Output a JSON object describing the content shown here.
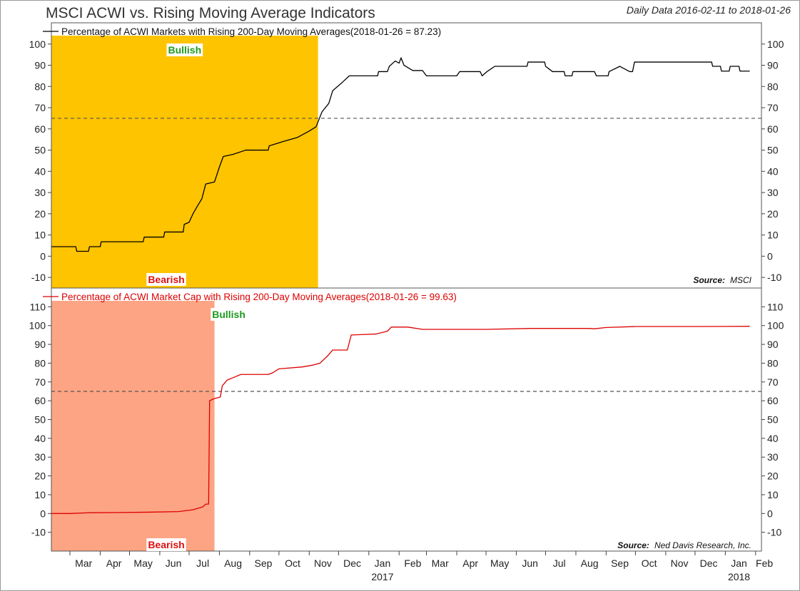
{
  "chart_data": [
    {
      "type": "line",
      "title": "MSCI ACWI vs. Rising Moving Average Indicators",
      "subtitle": "Daily Data 2016-02-11 to 2018-01-26",
      "series": [
        {
          "name": "Percentage of ACWI Markets with Rising 200-Day Moving Averages(2018-01-26 = 87.23)",
          "color": "#000000",
          "points": [
            [
              "2016-02-11",
              4.5
            ],
            [
              "2016-03-07",
              4.5
            ],
            [
              "2016-03-08",
              2.3
            ],
            [
              "2016-03-20",
              2.3
            ],
            [
              "2016-03-21",
              4.5
            ],
            [
              "2016-04-01",
              4.5
            ],
            [
              "2016-04-02",
              6.8
            ],
            [
              "2016-05-15",
              6.8
            ],
            [
              "2016-05-16",
              9
            ],
            [
              "2016-06-05",
              9
            ],
            [
              "2016-06-06",
              11.4
            ],
            [
              "2016-06-25",
              11.4
            ],
            [
              "2016-06-26",
              15
            ],
            [
              "2016-07-01",
              16
            ],
            [
              "2016-07-05",
              20
            ],
            [
              "2016-07-10",
              24
            ],
            [
              "2016-07-14",
              27
            ],
            [
              "2016-07-18",
              34
            ],
            [
              "2016-07-27",
              35
            ],
            [
              "2016-08-01",
              42
            ],
            [
              "2016-08-05",
              47
            ],
            [
              "2016-08-15",
              48
            ],
            [
              "2016-08-28",
              50
            ],
            [
              "2016-09-20",
              50
            ],
            [
              "2016-09-21",
              52
            ],
            [
              "2016-10-05",
              54
            ],
            [
              "2016-10-20",
              56
            ],
            [
              "2016-11-01",
              59
            ],
            [
              "2016-11-08",
              61
            ],
            [
              "2016-11-14",
              68
            ],
            [
              "2016-11-21",
              72
            ],
            [
              "2016-11-25",
              78
            ],
            [
              "2016-12-05",
              82
            ],
            [
              "2016-12-12",
              85
            ],
            [
              "2017-01-10",
              85
            ],
            [
              "2017-01-11",
              87
            ],
            [
              "2017-01-20",
              87
            ],
            [
              "2017-01-22",
              89.5
            ],
            [
              "2017-01-28",
              92
            ],
            [
              "2017-02-01",
              91
            ],
            [
              "2017-02-03",
              93.5
            ],
            [
              "2017-02-06",
              90
            ],
            [
              "2017-02-15",
              87.5
            ],
            [
              "2017-02-25",
              87.5
            ],
            [
              "2017-03-01",
              85
            ],
            [
              "2017-04-01",
              85
            ],
            [
              "2017-04-04",
              87
            ],
            [
              "2017-04-25",
              87
            ],
            [
              "2017-04-27",
              85
            ],
            [
              "2017-05-02",
              87
            ],
            [
              "2017-05-10",
              89.5
            ],
            [
              "2017-06-12",
              89.5
            ],
            [
              "2017-06-13",
              91.5
            ],
            [
              "2017-06-30",
              91.5
            ],
            [
              "2017-07-01",
              89.5
            ],
            [
              "2017-07-08",
              87
            ],
            [
              "2017-07-20",
              87
            ],
            [
              "2017-07-21",
              85
            ],
            [
              "2017-07-28",
              85
            ],
            [
              "2017-07-29",
              87
            ],
            [
              "2017-08-20",
              87
            ],
            [
              "2017-08-22",
              85
            ],
            [
              "2017-09-03",
              85
            ],
            [
              "2017-09-04",
              87
            ],
            [
              "2017-09-15",
              89.5
            ],
            [
              "2017-09-25",
              87
            ],
            [
              "2017-09-28",
              87
            ],
            [
              "2017-09-30",
              91.5
            ],
            [
              "2017-12-18",
              91.5
            ],
            [
              "2017-12-19",
              89.5
            ],
            [
              "2017-12-27",
              89.5
            ],
            [
              "2017-12-28",
              87.23
            ],
            [
              "2018-01-05",
              87.23
            ],
            [
              "2018-01-06",
              89.5
            ],
            [
              "2018-01-15",
              89.5
            ],
            [
              "2018-01-16",
              87.23
            ],
            [
              "2018-01-26",
              87.23
            ]
          ]
        },
        {
          "name": "Percentage of ACWI Market Cap with Rising 200-Day Moving Averages(2018-01-26 = 99.63)",
          "color": "#dd0000",
          "points": [
            [
              "2016-02-11",
              0
            ],
            [
              "2016-03-01",
              0
            ],
            [
              "2016-03-20",
              0.4
            ],
            [
              "2016-04-15",
              0.5
            ],
            [
              "2016-05-20",
              0.7
            ],
            [
              "2016-06-20",
              1
            ],
            [
              "2016-07-05",
              2
            ],
            [
              "2016-07-15",
              3.5
            ],
            [
              "2016-07-18",
              5
            ],
            [
              "2016-07-21",
              5
            ],
            [
              "2016-07-22",
              60
            ],
            [
              "2016-07-26",
              61
            ],
            [
              "2016-08-02",
              62
            ],
            [
              "2016-08-04",
              68
            ],
            [
              "2016-08-09",
              71
            ],
            [
              "2016-08-16",
              72.5
            ],
            [
              "2016-08-23",
              74
            ],
            [
              "2016-09-20",
              74
            ],
            [
              "2016-09-25",
              75
            ],
            [
              "2016-10-01",
              77
            ],
            [
              "2016-10-25",
              78
            ],
            [
              "2016-11-05",
              79
            ],
            [
              "2016-11-12",
              80
            ],
            [
              "2016-11-20",
              84
            ],
            [
              "2016-11-25",
              87
            ],
            [
              "2016-12-10",
              87
            ],
            [
              "2016-12-14",
              95
            ],
            [
              "2017-01-08",
              95.5
            ],
            [
              "2017-01-20",
              97
            ],
            [
              "2017-01-24",
              99.2
            ],
            [
              "2017-02-10",
              99.2
            ],
            [
              "2017-02-25",
              98
            ],
            [
              "2017-05-01",
              98
            ],
            [
              "2017-06-15",
              98.5
            ],
            [
              "2017-08-15",
              98.5
            ],
            [
              "2017-08-20",
              98.3
            ],
            [
              "2017-09-01",
              99
            ],
            [
              "2017-10-01",
              99.5
            ],
            [
              "2017-12-01",
              99.5
            ],
            [
              "2018-01-26",
              99.63
            ]
          ]
        }
      ],
      "panels": [
        {
          "id": "top",
          "series_index": 0,
          "ylim": [
            -15,
            110
          ],
          "yticks": [
            -10,
            0,
            10,
            20,
            30,
            40,
            50,
            60,
            70,
            80,
            90,
            100
          ],
          "yticks_labels": [
            "-10",
            "0",
            "10",
            "20",
            "30",
            "40",
            "50",
            "60",
            "70",
            "80",
            "90",
            "100"
          ],
          "reference_line": 65,
          "shade": {
            "start": "2016-02-11",
            "end": "2016-11-10",
            "color": "#ffc400"
          },
          "bullish_label": "Bullish",
          "bearish_label": "Bearish",
          "source_label": "Source:",
          "source_name": "MSCI"
        },
        {
          "id": "bottom",
          "series_index": 1,
          "ylim": [
            -20,
            120
          ],
          "yticks": [
            -10,
            0,
            10,
            20,
            30,
            40,
            50,
            60,
            70,
            80,
            90,
            100,
            110
          ],
          "yticks_labels": [
            "-10",
            "0",
            "10",
            "20",
            "30",
            "40",
            "50",
            "60",
            "70",
            "80",
            "90",
            "100",
            "110"
          ],
          "reference_line": 65,
          "shade": {
            "start": "2016-02-11",
            "end": "2016-07-27",
            "color": "#fda484"
          },
          "bullish_label": "Bullish",
          "bearish_label": "Bearish",
          "source_label": "Source:",
          "source_name": "Ned Davis Research, Inc."
        }
      ],
      "x_axis": {
        "range": [
          "2016-02-11",
          "2018-02-07"
        ],
        "month_labels": [
          [
            "Mar",
            "2016-03-15"
          ],
          [
            "Apr",
            "2016-04-15"
          ],
          [
            "May",
            "2016-05-15"
          ],
          [
            "Jun",
            "2016-06-15"
          ],
          [
            "Jul",
            "2016-07-15"
          ],
          [
            "Aug",
            "2016-08-15"
          ],
          [
            "Sep",
            "2016-09-15"
          ],
          [
            "Oct",
            "2016-10-15"
          ],
          [
            "Nov",
            "2016-11-15"
          ],
          [
            "Dec",
            "2016-12-15"
          ],
          [
            "Jan",
            "2017-01-15"
          ],
          [
            "Feb",
            "2017-02-15"
          ],
          [
            "Mar",
            "2017-03-15"
          ],
          [
            "Apr",
            "2017-04-15"
          ],
          [
            "May",
            "2017-05-15"
          ],
          [
            "Jun",
            "2017-06-15"
          ],
          [
            "Jul",
            "2017-07-15"
          ],
          [
            "Aug",
            "2017-08-15"
          ],
          [
            "Sep",
            "2017-09-15"
          ],
          [
            "Oct",
            "2017-10-15"
          ],
          [
            "Nov",
            "2017-11-15"
          ],
          [
            "Dec",
            "2017-12-15"
          ],
          [
            "Jan",
            "2018-01-15"
          ],
          [
            "Feb",
            "2018-02-10"
          ]
        ],
        "year_labels": [
          [
            "2017",
            "2017-01-15"
          ],
          [
            "2018",
            "2018-01-15"
          ]
        ]
      }
    }
  ]
}
